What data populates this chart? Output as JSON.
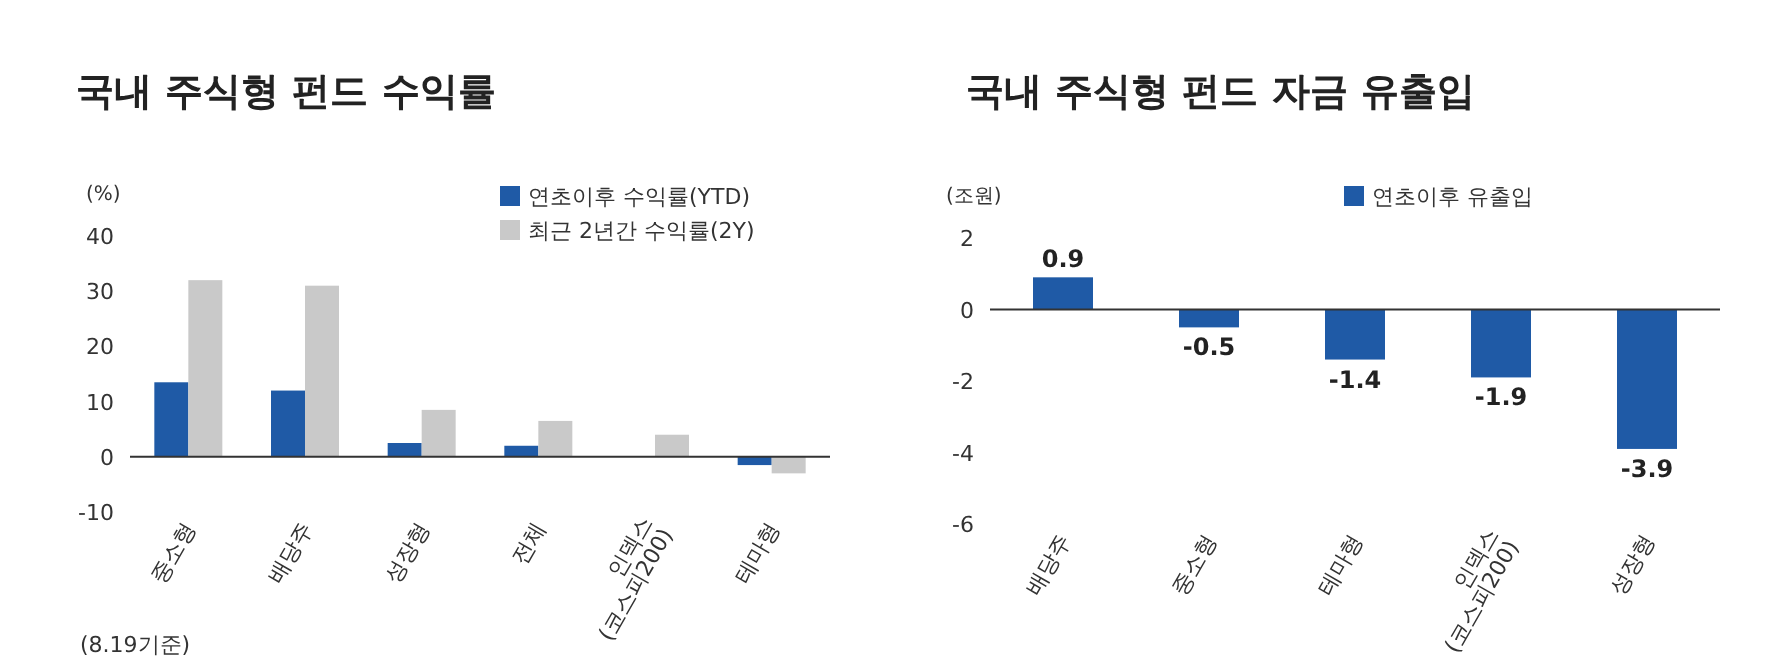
{
  "chart_data": [
    {
      "type": "bar",
      "title": "국내 주식형 펀드 수익률",
      "ylabel": "(%)",
      "categories": [
        "중소형",
        "배당주",
        "성장형",
        "전체",
        "인덱스\n(코스피200)",
        "테마형"
      ],
      "series": [
        {
          "name": "연초이후 수익률(YTD)",
          "color": "#1f5aa6",
          "values": [
            13.5,
            12,
            2.5,
            2,
            0,
            -1.5
          ]
        },
        {
          "name": "최근 2년간 수익률(2Y)",
          "color": "#c9c9c9",
          "values": [
            32,
            31,
            8.5,
            6.5,
            4,
            -3
          ]
        }
      ],
      "ylim": [
        -10,
        40
      ],
      "yticks": [
        -10,
        0,
        10,
        20,
        30,
        40
      ],
      "legend": "top right",
      "annotations": [
        "(8.19기준)"
      ]
    },
    {
      "type": "bar",
      "title": "국내 주식형 펀드 자금 유출입",
      "ylabel": "(조원)",
      "categories": [
        "배당주",
        "중소형",
        "테마형",
        "인덱스\n(코스피200)",
        "성장형"
      ],
      "series": [
        {
          "name": "연초이후 유출입",
          "color": "#1f5aa6",
          "values": [
            0.9,
            -0.5,
            -1.4,
            -1.9,
            -3.9
          ]
        }
      ],
      "ylim": [
        -6,
        2
      ],
      "yticks": [
        -6,
        -4,
        -2,
        0,
        2
      ],
      "legend": "top",
      "data_labels": true
    }
  ]
}
